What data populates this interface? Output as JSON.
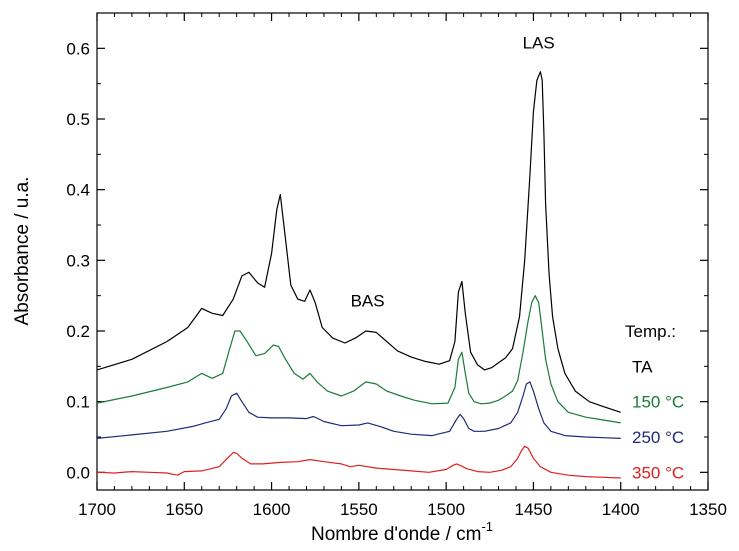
{
  "chart_data": {
    "type": "line",
    "xlabel": "Nombre d'onde / cm",
    "xlabel_sup": "-1",
    "ylabel": "Absorbance / u.a.",
    "xlim": [
      1700,
      1350
    ],
    "ylim": [
      -0.025,
      0.65
    ],
    "x_ticks": [
      1700,
      1650,
      1600,
      1550,
      1500,
      1450,
      1400,
      1350
    ],
    "y_ticks": [
      0.0,
      0.1,
      0.2,
      0.3,
      0.4,
      0.5,
      0.6
    ],
    "y_tick_labels": [
      "0.0",
      "0.1",
      "0.2",
      "0.3",
      "0.4",
      "0.5",
      "0.6"
    ],
    "grid": false,
    "legend_title": "Temp.:",
    "annotations": [
      {
        "text": "BAS",
        "x": 1545,
        "y": 0.235
      },
      {
        "text": "LAS",
        "x": 1447,
        "y": 0.6
      }
    ],
    "series": [
      {
        "name": "TA",
        "color": "#000000",
        "x": [
          1700,
          1680,
          1660,
          1648,
          1640,
          1634,
          1628,
          1622,
          1617,
          1613,
          1608,
          1604,
          1600,
          1597,
          1595,
          1592,
          1589,
          1585,
          1581,
          1578,
          1575,
          1571,
          1565,
          1558,
          1552,
          1546,
          1540,
          1534,
          1528,
          1520,
          1512,
          1504,
          1498,
          1495,
          1493,
          1491,
          1489,
          1486,
          1482,
          1478,
          1474,
          1470,
          1466,
          1462,
          1458,
          1455,
          1452,
          1450,
          1448,
          1446,
          1445,
          1444,
          1443,
          1441,
          1439,
          1436,
          1432,
          1426,
          1418,
          1410,
          1400
        ],
        "values": [
          0.145,
          0.16,
          0.185,
          0.205,
          0.232,
          0.225,
          0.222,
          0.245,
          0.278,
          0.283,
          0.268,
          0.262,
          0.31,
          0.372,
          0.393,
          0.33,
          0.265,
          0.245,
          0.242,
          0.258,
          0.24,
          0.205,
          0.19,
          0.183,
          0.19,
          0.2,
          0.198,
          0.185,
          0.172,
          0.163,
          0.157,
          0.153,
          0.158,
          0.185,
          0.255,
          0.27,
          0.225,
          0.17,
          0.152,
          0.145,
          0.148,
          0.155,
          0.162,
          0.175,
          0.22,
          0.3,
          0.42,
          0.51,
          0.555,
          0.567,
          0.555,
          0.48,
          0.38,
          0.28,
          0.22,
          0.175,
          0.14,
          0.115,
          0.1,
          0.093,
          0.085
        ]
      },
      {
        "name": "150 °C",
        "color": "#1a7a3a",
        "x": [
          1700,
          1680,
          1660,
          1648,
          1640,
          1634,
          1628,
          1624,
          1621,
          1618,
          1614,
          1609,
          1604,
          1599,
          1596,
          1592,
          1587,
          1582,
          1578,
          1574,
          1568,
          1560,
          1553,
          1546,
          1540,
          1534,
          1526,
          1518,
          1508,
          1499,
          1495,
          1493,
          1491,
          1489,
          1487,
          1484,
          1480,
          1475,
          1470,
          1466,
          1462,
          1459,
          1456,
          1453,
          1451,
          1449,
          1447,
          1445,
          1443,
          1440,
          1436,
          1430,
          1420,
          1410,
          1400
        ],
        "values": [
          0.098,
          0.108,
          0.12,
          0.128,
          0.14,
          0.133,
          0.14,
          0.175,
          0.2,
          0.2,
          0.185,
          0.165,
          0.168,
          0.18,
          0.178,
          0.16,
          0.14,
          0.132,
          0.14,
          0.128,
          0.115,
          0.108,
          0.115,
          0.128,
          0.125,
          0.115,
          0.108,
          0.102,
          0.097,
          0.098,
          0.12,
          0.16,
          0.17,
          0.14,
          0.112,
          0.1,
          0.097,
          0.098,
          0.102,
          0.108,
          0.115,
          0.13,
          0.17,
          0.215,
          0.24,
          0.25,
          0.24,
          0.2,
          0.16,
          0.125,
          0.1,
          0.085,
          0.078,
          0.074,
          0.07
        ]
      },
      {
        "name": "250 °C",
        "color": "#1f2a7a",
        "x": [
          1700,
          1680,
          1660,
          1645,
          1638,
          1630,
          1626,
          1623,
          1620,
          1617,
          1613,
          1608,
          1600,
          1590,
          1580,
          1576,
          1570,
          1560,
          1550,
          1545,
          1538,
          1530,
          1520,
          1508,
          1498,
          1494,
          1492,
          1490,
          1487,
          1484,
          1478,
          1470,
          1463,
          1459,
          1456,
          1454,
          1452,
          1450,
          1447,
          1444,
          1440,
          1432,
          1420,
          1410,
          1400
        ],
        "values": [
          0.048,
          0.053,
          0.058,
          0.065,
          0.07,
          0.075,
          0.09,
          0.108,
          0.112,
          0.1,
          0.085,
          0.078,
          0.077,
          0.077,
          0.076,
          0.079,
          0.072,
          0.066,
          0.067,
          0.07,
          0.065,
          0.058,
          0.054,
          0.052,
          0.058,
          0.075,
          0.082,
          0.076,
          0.062,
          0.058,
          0.058,
          0.062,
          0.07,
          0.085,
          0.108,
          0.125,
          0.128,
          0.115,
          0.09,
          0.07,
          0.058,
          0.052,
          0.05,
          0.049,
          0.048
        ]
      },
      {
        "name": "350 °C",
        "color": "#e02020",
        "x": [
          1700,
          1690,
          1680,
          1670,
          1660,
          1654,
          1650,
          1640,
          1630,
          1626,
          1622,
          1620,
          1617,
          1612,
          1605,
          1595,
          1585,
          1578,
          1570,
          1560,
          1555,
          1550,
          1540,
          1530,
          1520,
          1510,
          1500,
          1496,
          1494,
          1492,
          1488,
          1482,
          1475,
          1468,
          1463,
          1459,
          1457,
          1455,
          1453,
          1450,
          1446,
          1440,
          1430,
          1420,
          1410,
          1400
        ],
        "values": [
          0.0,
          -0.001,
          0.001,
          0.0,
          -0.001,
          -0.004,
          0.001,
          0.002,
          0.008,
          0.018,
          0.028,
          0.027,
          0.02,
          0.012,
          0.012,
          0.014,
          0.015,
          0.018,
          0.015,
          0.012,
          0.008,
          0.01,
          0.006,
          0.004,
          0.002,
          0.0,
          0.004,
          0.01,
          0.012,
          0.01,
          0.005,
          0.001,
          0.0,
          0.003,
          0.008,
          0.02,
          0.03,
          0.037,
          0.034,
          0.02,
          0.008,
          0.0,
          -0.004,
          -0.006,
          -0.007,
          -0.008
        ]
      }
    ]
  }
}
